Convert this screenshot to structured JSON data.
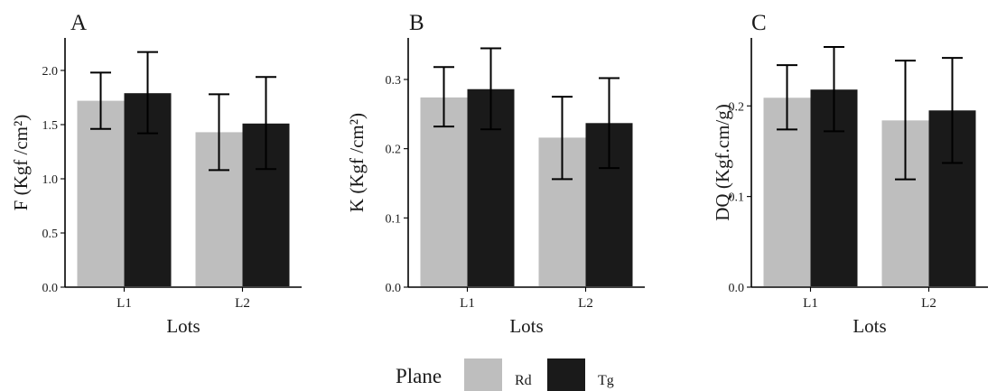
{
  "chart_data": [
    {
      "type": "bar",
      "panel_label": "A",
      "xlabel": "Lots",
      "ylabel": "F (Kgf /cm²)",
      "categories": [
        "L1",
        "L2"
      ],
      "yticks": [
        "0.0",
        "0.5",
        "1.0",
        "1.5",
        "2.0"
      ],
      "ylim": [
        0,
        2.3
      ],
      "series": [
        {
          "name": "Rd",
          "values": [
            1.72,
            1.43
          ],
          "err_low": [
            1.46,
            1.08
          ],
          "err_high": [
            1.98,
            1.78
          ]
        },
        {
          "name": "Tg",
          "values": [
            1.79,
            1.51
          ],
          "err_low": [
            1.42,
            1.09
          ],
          "err_high": [
            2.17,
            1.94
          ]
        }
      ],
      "grid": false
    },
    {
      "type": "bar",
      "panel_label": "B",
      "xlabel": "Lots",
      "ylabel": "K (Kgf /cm²)",
      "categories": [
        "L1",
        "L2"
      ],
      "yticks": [
        "0.0",
        "0.1",
        "0.2",
        "0.3"
      ],
      "ylim": [
        0,
        0.36
      ],
      "series": [
        {
          "name": "Rd",
          "values": [
            0.274,
            0.216
          ],
          "err_low": [
            0.232,
            0.156
          ],
          "err_high": [
            0.318,
            0.275
          ]
        },
        {
          "name": "Tg",
          "values": [
            0.286,
            0.237
          ],
          "err_low": [
            0.228,
            0.172
          ],
          "err_high": [
            0.345,
            0.302
          ]
        }
      ],
      "grid": false
    },
    {
      "type": "bar",
      "panel_label": "C",
      "xlabel": "Lots",
      "ylabel": "DQ (Kgf.cm/g)",
      "categories": [
        "L1",
        "L2"
      ],
      "yticks": [
        "0.0",
        "0.1",
        "0.2"
      ],
      "ylim": [
        0,
        0.275
      ],
      "series": [
        {
          "name": "Rd",
          "values": [
            0.209,
            0.184
          ],
          "err_low": [
            0.174,
            0.119
          ],
          "err_high": [
            0.245,
            0.25
          ]
        },
        {
          "name": "Tg",
          "values": [
            0.218,
            0.195
          ],
          "err_low": [
            0.172,
            0.137
          ],
          "err_high": [
            0.265,
            0.253
          ]
        }
      ],
      "grid": false
    }
  ],
  "legend": {
    "title": "Plane",
    "position": "bottom",
    "items": [
      {
        "label": "Rd",
        "color": "#bebebe"
      },
      {
        "label": "Tg",
        "color": "#1a1a1a"
      }
    ]
  },
  "colors": {
    "Rd": "#bebebe",
    "Tg": "#1a1a1a"
  }
}
